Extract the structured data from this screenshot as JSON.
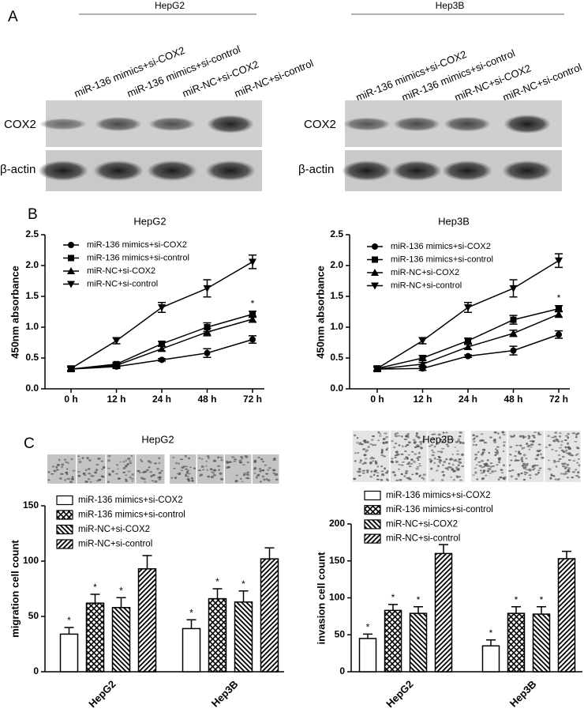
{
  "figure": {
    "panel_labels": [
      "A",
      "B",
      "C"
    ],
    "blots": [
      {
        "title": "HepG2",
        "lanes": [
          "miR-136 mimics+si-COX2",
          "miR-136 mimics+si-control",
          "miR-NC+si-COX2",
          "miR-NC+si-control"
        ],
        "rows": [
          "COX2",
          "β-actin"
        ]
      },
      {
        "title": "Hep3B",
        "lanes": [
          "miR-136 mimics+si-COX2",
          "miR-136 mimics+si-control",
          "miR-NC+si-COX2",
          "miR-NC+si-control"
        ],
        "rows": [
          "COX2",
          "β-actin"
        ]
      }
    ],
    "image_titles": [
      "HepG2",
      "Hep3B"
    ]
  },
  "chart_data": [
    {
      "type": "line",
      "title": "HepG2",
      "y_label": "450nm absorbance",
      "categories": [
        "0 h",
        "12 h",
        "24 h",
        "48 h",
        "72 h"
      ],
      "ylim": [
        0,
        2.5
      ],
      "yticks": [
        {
          "value": 0,
          "label": "0.0"
        },
        {
          "value": 0.5,
          "label": "0.5"
        },
        {
          "value": 1,
          "label": "1.0"
        },
        {
          "value": 1.5,
          "label": "1.5"
        },
        {
          "value": 2,
          "label": "2.0"
        },
        {
          "value": 2.5,
          "label": "2.5"
        }
      ],
      "legend": "upper left",
      "series": [
        {
          "name": "miR-136 mimics+si-COX2",
          "marker": "circle",
          "color": "#000000",
          "values": [
            0.32,
            0.36,
            0.47,
            0.58,
            0.8
          ],
          "errors": [
            0.03,
            0.03,
            0.02,
            0.07,
            0.06
          ]
        },
        {
          "name": "miR-136 mimics+si-control",
          "marker": "square",
          "color": "#000000",
          "values": [
            0.32,
            0.4,
            0.73,
            1.0,
            1.21
          ],
          "errors": [
            0.03,
            0.03,
            0.04,
            0.07,
            0.05
          ],
          "marks": [
            null,
            null,
            null,
            null,
            "*"
          ]
        },
        {
          "name": "miR-NC+si-COX2",
          "marker": "triangle",
          "color": "#000000",
          "values": [
            0.32,
            0.38,
            0.65,
            0.92,
            1.13
          ],
          "errors": [
            0.03,
            0.03,
            0.04,
            0.06,
            0.05
          ]
        },
        {
          "name": "miR-NC+si-control",
          "marker": "triangle-down",
          "color": "#000000",
          "values": [
            0.33,
            0.78,
            1.32,
            1.63,
            2.06
          ],
          "errors": [
            0.03,
            0.05,
            0.08,
            0.14,
            0.11
          ]
        }
      ]
    },
    {
      "type": "line",
      "title": "Hep3B",
      "y_label": "450nm absorbance",
      "categories": [
        "0 h",
        "12 h",
        "24 h",
        "48 h",
        "72 h"
      ],
      "ylim": [
        0,
        2.5
      ],
      "yticks": [
        {
          "value": 0,
          "label": "0.0"
        },
        {
          "value": 0.5,
          "label": "0.5"
        },
        {
          "value": 1,
          "label": "1.0"
        },
        {
          "value": 1.5,
          "label": "1.5"
        },
        {
          "value": 2,
          "label": "2.0"
        },
        {
          "value": 2.5,
          "label": "2.5"
        }
      ],
      "legend": "upper left",
      "series": [
        {
          "name": "miR-136 mimics+si-COX2",
          "marker": "circle",
          "color": "#000000",
          "values": [
            0.32,
            0.33,
            0.53,
            0.62,
            0.88
          ],
          "errors": [
            0.03,
            0.03,
            0.02,
            0.07,
            0.06
          ]
        },
        {
          "name": "miR-136 mimics+si-control",
          "marker": "square",
          "color": "#000000",
          "values": [
            0.33,
            0.5,
            0.78,
            1.12,
            1.3
          ],
          "errors": [
            0.03,
            0.04,
            0.04,
            0.07,
            0.05
          ],
          "marks": [
            null,
            null,
            null,
            null,
            "*"
          ]
        },
        {
          "name": "miR-NC+si-COX2",
          "marker": "triangle",
          "color": "#000000",
          "values": [
            0.32,
            0.4,
            0.68,
            0.9,
            1.21
          ],
          "errors": [
            0.03,
            0.03,
            0.04,
            0.05,
            0.05
          ]
        },
        {
          "name": "miR-NC+si-control",
          "marker": "triangle-down",
          "color": "#000000",
          "values": [
            0.33,
            0.78,
            1.32,
            1.63,
            2.08
          ],
          "errors": [
            0.03,
            0.05,
            0.08,
            0.14,
            0.11
          ]
        }
      ]
    },
    {
      "type": "bar",
      "y_label": "migration cell count",
      "categories": [
        "HepG2",
        "Hep3B"
      ],
      "ylim": [
        0,
        150
      ],
      "yticks": [
        0,
        50,
        100,
        150
      ],
      "legend": "upper left",
      "series": [
        {
          "name": "miR-136 mimics+si-COX2",
          "pattern": "none",
          "values": [
            34,
            39
          ],
          "errors": [
            6,
            8
          ],
          "marks": [
            "*",
            "*"
          ]
        },
        {
          "name": "miR-136 mimics+si-control",
          "pattern": "crosshatch",
          "values": [
            62,
            66
          ],
          "errors": [
            8,
            9
          ],
          "marks": [
            "*",
            "*"
          ]
        },
        {
          "name": "miR-NC+si-COX2",
          "pattern": "backslash",
          "values": [
            58,
            63
          ],
          "errors": [
            9,
            10
          ],
          "marks": [
            "*",
            "*"
          ]
        },
        {
          "name": "miR-NC+si-control",
          "pattern": "slash",
          "values": [
            93,
            102
          ],
          "errors": [
            12,
            10
          ]
        }
      ]
    },
    {
      "type": "bar",
      "y_label": "invasion cell count",
      "categories": [
        "HepG2",
        "Hep3B"
      ],
      "ylim": [
        0,
        200
      ],
      "yticks": [
        0,
        50,
        100,
        150,
        200
      ],
      "legend": "upper left",
      "series": [
        {
          "name": "miR-136 mimics+si-COX2",
          "pattern": "none",
          "values": [
            45,
            35
          ],
          "errors": [
            6,
            8
          ],
          "marks": [
            "*",
            "*"
          ]
        },
        {
          "name": "miR-136 mimics+si-control",
          "pattern": "crosshatch",
          "values": [
            83,
            79
          ],
          "errors": [
            8,
            9
          ],
          "marks": [
            "*",
            "*"
          ]
        },
        {
          "name": "miR-NC+si-COX2",
          "pattern": "backslash",
          "values": [
            79,
            78
          ],
          "errors": [
            9,
            10
          ],
          "marks": [
            "*",
            "*"
          ]
        },
        {
          "name": "miR-NC+si-control",
          "pattern": "slash",
          "values": [
            160,
            153
          ],
          "errors": [
            12,
            10
          ]
        }
      ]
    }
  ]
}
